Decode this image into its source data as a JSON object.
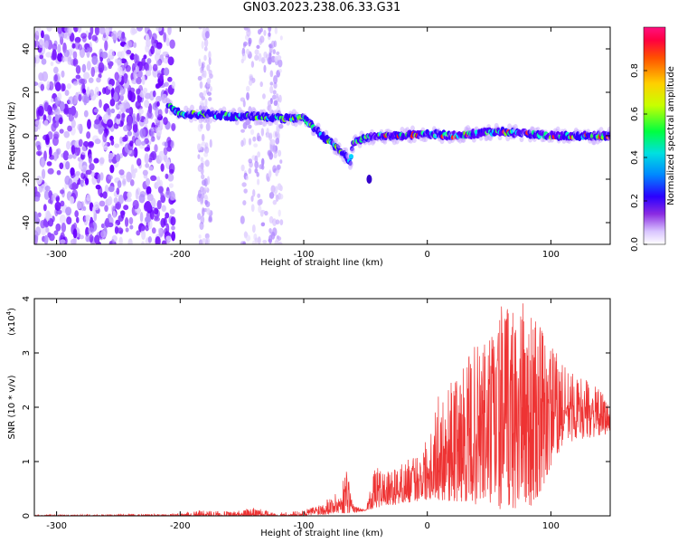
{
  "title": "GN03.2023.238.06.33.G31",
  "colors": {
    "plot_bg": "#ffffff",
    "axis": "#000000",
    "snr_line": "#ee3333",
    "track_core": "#2a00ff"
  },
  "chart_data": [
    {
      "type": "heatmap",
      "xlabel": "Height of straight line (km)",
      "ylabel": "Frequency (Hz)",
      "xlim": [
        -318,
        148
      ],
      "ylim": [
        -50,
        50
      ],
      "xticks": [
        -300,
        -200,
        -100,
        0,
        100
      ],
      "xtick_labels": [
        "-300",
        "-200",
        "-100",
        "0",
        "100"
      ],
      "yticks": [
        -40,
        -20,
        0,
        20,
        40
      ],
      "ytick_labels": [
        "-40",
        "-20",
        "0",
        "20",
        "40"
      ],
      "grid": false,
      "noise_region_x": [
        -318,
        -205
      ],
      "noise_stripes_x": [
        [
          -185,
          -175
        ],
        [
          -150,
          -128
        ],
        [
          -128,
          -118
        ]
      ],
      "track": [
        {
          "x": -210,
          "y": 14
        },
        {
          "x": -200,
          "y": 10
        },
        {
          "x": -180,
          "y": 10
        },
        {
          "x": -160,
          "y": 9
        },
        {
          "x": -140,
          "y": 9
        },
        {
          "x": -120,
          "y": 8
        },
        {
          "x": -100,
          "y": 8
        },
        {
          "x": -92,
          "y": 4
        },
        {
          "x": -85,
          "y": 0
        },
        {
          "x": -78,
          "y": -3
        },
        {
          "x": -70,
          "y": -7
        },
        {
          "x": -62,
          "y": -12
        },
        {
          "x": -60,
          "y": -3
        },
        {
          "x": -50,
          "y": -1
        },
        {
          "x": -40,
          "y": 0
        },
        {
          "x": -20,
          "y": 0
        },
        {
          "x": 0,
          "y": 1
        },
        {
          "x": 20,
          "y": 0
        },
        {
          "x": 40,
          "y": 1
        },
        {
          "x": 60,
          "y": 2
        },
        {
          "x": 80,
          "y": 1
        },
        {
          "x": 100,
          "y": 0
        },
        {
          "x": 120,
          "y": 0
        },
        {
          "x": 148,
          "y": 0
        }
      ],
      "isolated_blob": {
        "x": -47,
        "y": -20
      },
      "colorbar": {
        "label": "Normalized spectral amplitude",
        "range": [
          0,
          1
        ],
        "ticks": [
          0.0,
          0.2,
          0.4,
          0.6,
          0.8
        ],
        "tick_labels": [
          "0.0",
          "0.2",
          "0.4",
          "0.6",
          "0.8"
        ]
      }
    },
    {
      "type": "line",
      "xlabel": "Height of straight line (km)",
      "ylabel": "SNR (10 * v/v)",
      "y_multiplier_label": "(x10",
      "y_multiplier_exp": "4",
      "y_multiplier_close": ")",
      "xlim": [
        -318,
        148
      ],
      "ylim": [
        0,
        4
      ],
      "xticks": [
        -300,
        -200,
        -100,
        0,
        100
      ],
      "xtick_labels": [
        "-300",
        "-200",
        "-100",
        "0",
        "100"
      ],
      "yticks": [
        0,
        1,
        2,
        3,
        4
      ],
      "ytick_labels": [
        "0",
        "1",
        "2",
        "3",
        "4"
      ],
      "grid": false,
      "series": [
        {
          "envelope": [
            {
              "x": -318,
              "y": 0.02
            },
            {
              "x": -250,
              "y": 0.03
            },
            {
              "x": -200,
              "y": 0.05
            },
            {
              "x": -180,
              "y": 0.12
            },
            {
              "x": -160,
              "y": 0.08
            },
            {
              "x": -140,
              "y": 0.15
            },
            {
              "x": -120,
              "y": 0.06
            },
            {
              "x": -100,
              "y": 0.1
            },
            {
              "x": -90,
              "y": 0.2
            },
            {
              "x": -80,
              "y": 0.35
            },
            {
              "x": -70,
              "y": 0.45
            },
            {
              "x": -65,
              "y": 1.0
            },
            {
              "x": -60,
              "y": 0.2
            },
            {
              "x": -50,
              "y": 0.1
            },
            {
              "x": -42,
              "y": 0.9
            },
            {
              "x": -30,
              "y": 0.8
            },
            {
              "x": -20,
              "y": 1.0
            },
            {
              "x": -10,
              "y": 1.1
            },
            {
              "x": 0,
              "y": 1.5
            },
            {
              "x": 10,
              "y": 2.3
            },
            {
              "x": 20,
              "y": 2.5
            },
            {
              "x": 30,
              "y": 2.8
            },
            {
              "x": 40,
              "y": 3.2
            },
            {
              "x": 50,
              "y": 3.4
            },
            {
              "x": 60,
              "y": 3.9
            },
            {
              "x": 70,
              "y": 4.0
            },
            {
              "x": 80,
              "y": 3.9
            },
            {
              "x": 90,
              "y": 3.6
            },
            {
              "x": 100,
              "y": 3.2
            },
            {
              "x": 110,
              "y": 2.8
            },
            {
              "x": 120,
              "y": 2.6
            },
            {
              "x": 130,
              "y": 2.5
            },
            {
              "x": 140,
              "y": 2.3
            },
            {
              "x": 148,
              "y": 2.1
            }
          ],
          "floor": [
            {
              "x": -318,
              "y": 0
            },
            {
              "x": -100,
              "y": 0
            },
            {
              "x": -60,
              "y": 0.05
            },
            {
              "x": -40,
              "y": 0.15
            },
            {
              "x": 0,
              "y": 0.3
            },
            {
              "x": 30,
              "y": 0.25
            },
            {
              "x": 60,
              "y": 0.1
            },
            {
              "x": 90,
              "y": 0.2
            },
            {
              "x": 100,
              "y": 0.9
            },
            {
              "x": 110,
              "y": 1.3
            },
            {
              "x": 120,
              "y": 1.4
            },
            {
              "x": 148,
              "y": 1.5
            }
          ]
        }
      ]
    }
  ]
}
